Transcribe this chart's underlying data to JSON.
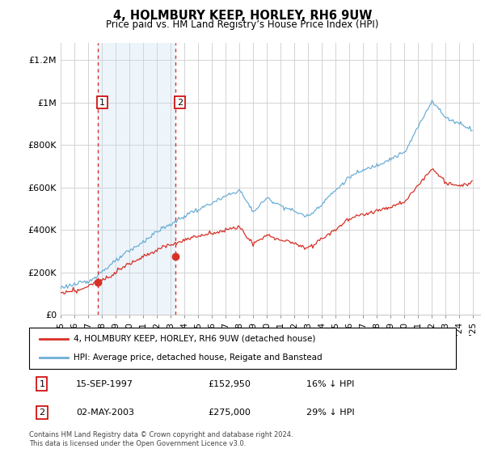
{
  "title": "4, HOLMBURY KEEP, HORLEY, RH6 9UW",
  "subtitle": "Price paid vs. HM Land Registry’s House Price Index (HPI)",
  "yticks": [
    0,
    200000,
    400000,
    600000,
    800000,
    1000000,
    1200000
  ],
  "ytick_labels": [
    "£0",
    "£200K",
    "£400K",
    "£600K",
    "£800K",
    "£1M",
    "£1.2M"
  ],
  "xmin": 1995.0,
  "xmax": 2025.5,
  "ymin": 0,
  "ymax": 1280000,
  "purchase_dates": [
    1997.706,
    2003.33
  ],
  "purchase_prices": [
    152950,
    275000
  ],
  "purchase_labels": [
    "1",
    "2"
  ],
  "legend_line1": "4, HOLMBURY KEEP, HORLEY, RH6 9UW (detached house)",
  "legend_line2": "HPI: Average price, detached house, Reigate and Banstead",
  "ann1_num": "1",
  "ann1_date": "15-SEP-1997",
  "ann1_price": "£152,950",
  "ann1_hpi": "16% ↓ HPI",
  "ann2_num": "2",
  "ann2_date": "02-MAY-2003",
  "ann2_price": "£275,000",
  "ann2_hpi": "29% ↓ HPI",
  "footer": "Contains HM Land Registry data © Crown copyright and database right 2024.\nThis data is licensed under the Open Government Licence v3.0.",
  "hpi_color": "#6baed6",
  "price_color": "#d73027",
  "shade_color": "#c6dbef",
  "background_color": "#ffffff"
}
